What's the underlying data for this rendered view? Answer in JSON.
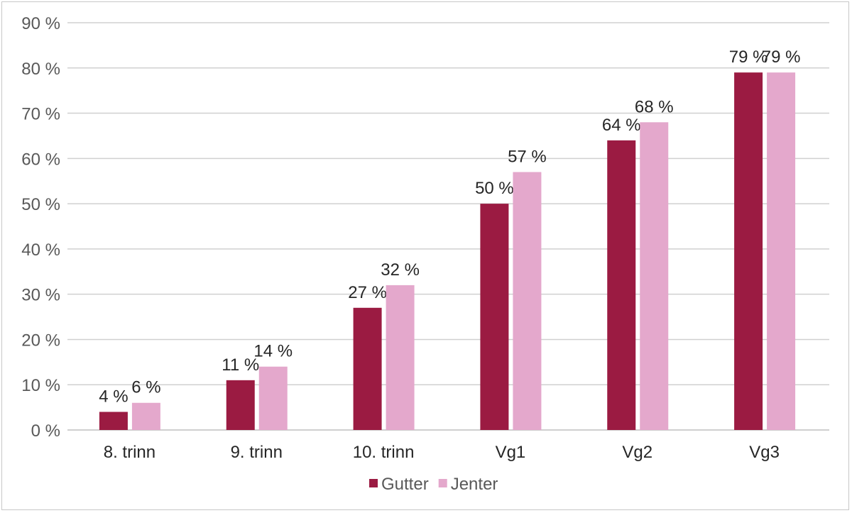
{
  "chart_data": {
    "type": "bar",
    "categories": [
      "8. trinn",
      "9. trinn",
      "10. trinn",
      "Vg1",
      "Vg2",
      "Vg3"
    ],
    "series": [
      {
        "name": "Gutter",
        "values": [
          4,
          11,
          27,
          50,
          64,
          79
        ],
        "color": "#9b1b42"
      },
      {
        "name": "Jenter",
        "values": [
          6,
          14,
          32,
          57,
          68,
          79
        ],
        "color": "#e4a8cc"
      }
    ],
    "y_ticks": [
      "0 %",
      "10 %",
      "20 %",
      "30 %",
      "40 %",
      "50 %",
      "60 %",
      "70 %",
      "80 %",
      "90 %"
    ],
    "data_labels": [
      [
        "4 %",
        "11 %",
        "27 %",
        "50 %",
        "64 %",
        "79 %"
      ],
      [
        "6 %",
        "14 %",
        "32 %",
        "57 %",
        "68 %",
        "79 %"
      ]
    ],
    "ylim": [
      0,
      90
    ],
    "grid": true,
    "legend_position": "bottom",
    "gridline_color": "#d0d0d0",
    "axis_color": "#bfbfbf"
  }
}
